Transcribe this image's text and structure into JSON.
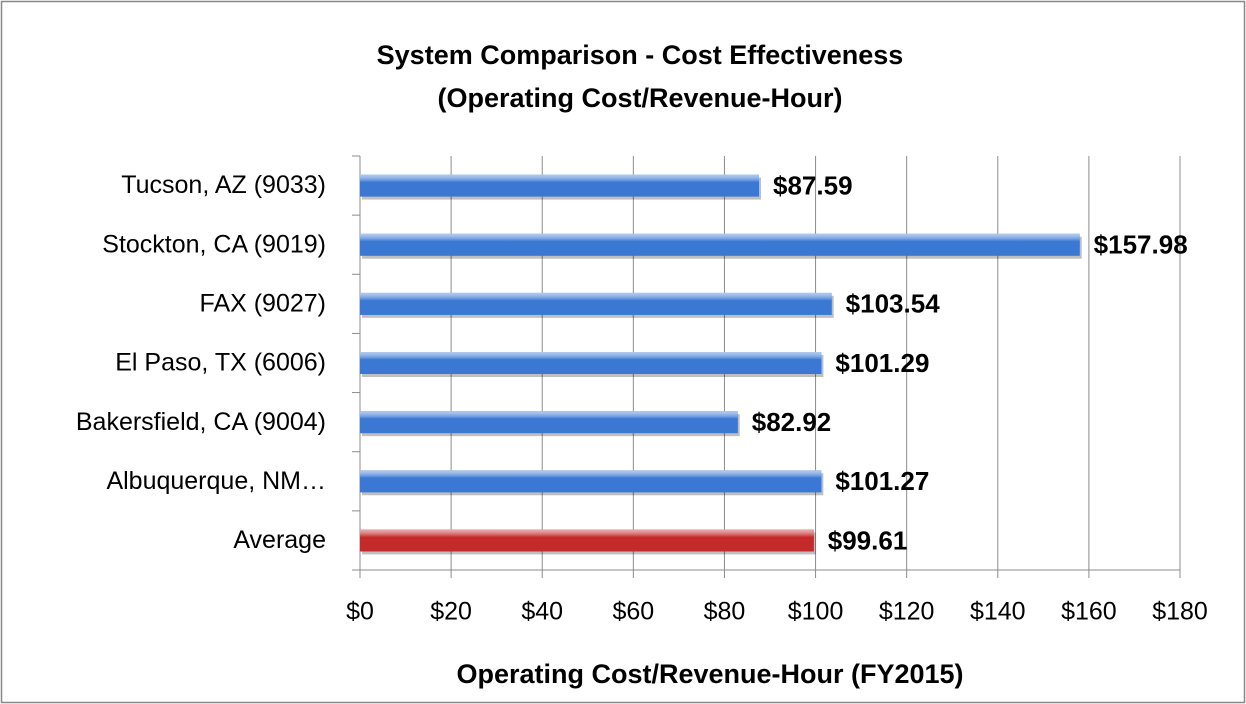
{
  "chart_data": {
    "type": "barh",
    "title": "System Comparison - Cost Effectiveness",
    "subtitle": "(Operating Cost/Revenue-Hour)",
    "x_label": "Operating Cost/Revenue-Hour (FY2015)",
    "categories": [
      "Tucson, AZ (9033)",
      "Stockton, CA (9019)",
      "FAX (9027)",
      "El Paso, TX (6006)",
      "Bakersfield, CA (9004)",
      "Albuquerque, NM…",
      "Average"
    ],
    "values": [
      87.59,
      157.98,
      103.54,
      101.29,
      82.92,
      101.27,
      99.61
    ],
    "value_labels": [
      "$87.59",
      "$157.98",
      "$103.54",
      "$101.29",
      "$82.92",
      "$101.27",
      "$99.61"
    ],
    "colors": [
      "#3a78d4",
      "#3a78d4",
      "#3a78d4",
      "#3a78d4",
      "#3a78d4",
      "#3a78d4",
      "#c42a2a"
    ],
    "xlim": [
      0,
      180
    ],
    "xticks": [
      {
        "value": 0,
        "label": "$0"
      },
      {
        "value": 20,
        "label": "$20"
      },
      {
        "value": 40,
        "label": "$40"
      },
      {
        "value": 60,
        "label": "$60"
      },
      {
        "value": 80,
        "label": "$80"
      },
      {
        "value": 100,
        "label": "$100"
      },
      {
        "value": 120,
        "label": "$120"
      },
      {
        "value": 140,
        "label": "$140"
      },
      {
        "value": 160,
        "label": "$160"
      },
      {
        "value": 180,
        "label": "$180"
      }
    ],
    "grid": true
  }
}
